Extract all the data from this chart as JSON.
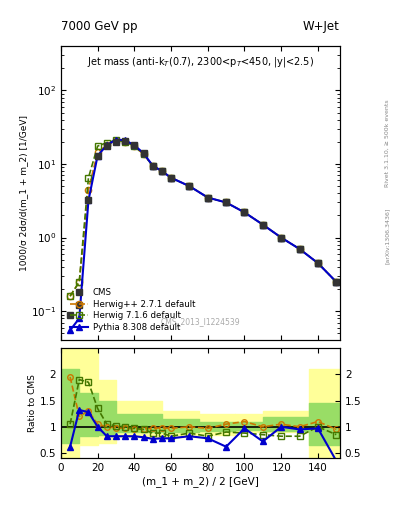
{
  "title_left": "7000 GeV pp",
  "title_right": "W+Jet",
  "plot_title": "Jet mass (anti-k$_T$(0.7), 2300<p$_T$<450, |y|<2.5)",
  "ylabel_main": "1000/σ 2dσ/d(m_1 + m_2) [1/GeV]",
  "ylabel_ratio": "Ratio to CMS",
  "xlabel": "(m_1 + m_2) / 2 [GeV]",
  "watermark": "CMS_2013_I1224539",
  "right_label": "Rivet 3.1.10, ≥ 500k events",
  "arxiv": "[arXiv:1306.3436]",
  "x_data": [
    5,
    10,
    15,
    20,
    25,
    30,
    35,
    40,
    45,
    50,
    55,
    60,
    70,
    80,
    90,
    100,
    110,
    120,
    130,
    140,
    150
  ],
  "cms_y": [
    0.09,
    0.12,
    3.2,
    13.0,
    17.5,
    20.0,
    20.5,
    18.0,
    14.0,
    9.5,
    8.0,
    6.5,
    5.0,
    3.5,
    3.0,
    2.2,
    1.5,
    1.0,
    0.7,
    0.45,
    0.25
  ],
  "herwig271_y": [
    0.16,
    0.25,
    4.5,
    14.5,
    18.0,
    20.5,
    20.0,
    17.5,
    13.5,
    9.5,
    8.0,
    6.5,
    5.0,
    3.5,
    3.0,
    2.2,
    1.5,
    1.0,
    0.7,
    0.45,
    0.25
  ],
  "herwig716_y": [
    0.16,
    0.25,
    6.5,
    17.5,
    19.5,
    21.0,
    20.0,
    17.5,
    13.5,
    9.5,
    8.0,
    6.5,
    5.0,
    3.5,
    3.0,
    2.2,
    1.5,
    1.0,
    0.7,
    0.45,
    0.25
  ],
  "pythia_y": [
    0.055,
    0.08,
    3.2,
    13.0,
    18.0,
    21.5,
    21.0,
    18.0,
    14.0,
    9.5,
    8.0,
    6.5,
    5.0,
    3.5,
    3.0,
    2.2,
    1.5,
    1.0,
    0.7,
    0.45,
    0.25
  ],
  "ratio_x": [
    5,
    10,
    15,
    20,
    25,
    30,
    35,
    40,
    45,
    50,
    55,
    60,
    70,
    80,
    90,
    100,
    110,
    120,
    130,
    140,
    150
  ],
  "herwig271_ratio": [
    1.95,
    1.2,
    1.3,
    1.05,
    1.0,
    0.98,
    0.97,
    0.96,
    0.96,
    0.97,
    0.98,
    0.97,
    1.0,
    0.97,
    1.05,
    1.1,
    1.0,
    1.05,
    1.0,
    1.1,
    0.95
  ],
  "herwig716_ratio": [
    1.05,
    1.9,
    1.85,
    1.35,
    1.05,
    1.02,
    1.0,
    0.97,
    0.95,
    0.88,
    0.88,
    0.82,
    0.88,
    0.82,
    0.9,
    0.88,
    0.85,
    0.82,
    0.82,
    1.0,
    0.85
  ],
  "pythia_ratio": [
    0.62,
    1.32,
    1.28,
    1.0,
    0.82,
    0.82,
    0.82,
    0.82,
    0.8,
    0.77,
    0.78,
    0.78,
    0.82,
    0.78,
    0.62,
    0.97,
    0.72,
    1.0,
    0.95,
    0.97,
    0.35
  ],
  "band_edges": [
    0,
    10,
    20,
    30,
    55,
    75,
    95,
    110,
    135,
    155
  ],
  "yellow_lo": [
    0.4,
    0.65,
    0.7,
    0.8,
    0.8,
    0.85,
    0.9,
    0.9,
    0.4,
    0.4
  ],
  "yellow_hi": [
    2.5,
    2.5,
    1.9,
    1.5,
    1.3,
    1.25,
    1.25,
    1.3,
    2.1,
    2.1
  ],
  "green_lo": [
    0.7,
    0.82,
    0.85,
    0.9,
    0.9,
    0.92,
    0.94,
    0.92,
    0.65,
    0.65
  ],
  "green_hi": [
    2.1,
    1.65,
    1.5,
    1.25,
    1.15,
    1.1,
    1.1,
    1.18,
    1.45,
    1.45
  ],
  "cms_color": "#333333",
  "herwig271_color": "#cc7700",
  "herwig716_color": "#447700",
  "pythia_color": "#0000cc",
  "yellow_color": "#ffff99",
  "green_color": "#99dd66",
  "xlim": [
    0,
    152
  ],
  "ylim_main": [
    0.04,
    400
  ],
  "ylim_ratio": [
    0.4,
    2.5
  ],
  "ratio_yticks": [
    0.5,
    1.0,
    1.5,
    2.0
  ]
}
